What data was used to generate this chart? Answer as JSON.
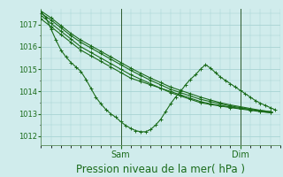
{
  "bg_color": "#d0ecec",
  "grid_color": "#a8d4d4",
  "line_color": "#1a6b1a",
  "marker_color": "#1a6b1a",
  "xlabel": "Pression niveau de la mer( hPa )",
  "xlabel_fontsize": 8.5,
  "tick_label_color": "#1a6b1a",
  "yticks": [
    1012,
    1013,
    1014,
    1015,
    1016,
    1017
  ],
  "ymin": 1011.6,
  "ymax": 1017.7,
  "xmin": 0,
  "xmax": 48,
  "xtick_labels": [
    [
      "Sam",
      16
    ],
    [
      "Dim",
      40
    ]
  ],
  "series": [
    [
      1017.25,
      1016.9,
      1016.55,
      1016.2,
      1015.85,
      1015.6,
      1015.35,
      1015.1,
      1014.85,
      1014.6,
      1014.45,
      1014.3,
      1014.15,
      1014.0,
      1013.85,
      1013.7,
      1013.55,
      1013.45,
      1013.38,
      1013.3,
      1013.25,
      1013.2,
      1013.15,
      1013.1
    ],
    [
      1017.4,
      1017.05,
      1016.7,
      1016.35,
      1016.0,
      1015.75,
      1015.5,
      1015.25,
      1015.0,
      1014.75,
      1014.55,
      1014.35,
      1014.15,
      1013.95,
      1013.8,
      1013.65,
      1013.5,
      1013.42,
      1013.35,
      1013.28,
      1013.22,
      1013.16,
      1013.1,
      1013.05
    ],
    [
      1017.5,
      1017.2,
      1016.85,
      1016.5,
      1016.2,
      1015.95,
      1015.7,
      1015.45,
      1015.2,
      1014.95,
      1014.72,
      1014.5,
      1014.3,
      1014.1,
      1013.95,
      1013.8,
      1013.65,
      1013.55,
      1013.45,
      1013.35,
      1013.28,
      1013.2,
      1013.12,
      1013.05
    ],
    [
      1017.6,
      1017.3,
      1016.95,
      1016.6,
      1016.3,
      1016.05,
      1015.8,
      1015.55,
      1015.3,
      1015.05,
      1014.82,
      1014.6,
      1014.4,
      1014.2,
      1014.05,
      1013.9,
      1013.75,
      1013.62,
      1013.5,
      1013.4,
      1013.32,
      1013.24,
      1013.16,
      1013.1
    ],
    [
      1017.55,
      1017.3,
      1016.8,
      1016.3,
      1015.85,
      1015.55,
      1015.3,
      1015.1,
      1014.9,
      1014.55,
      1014.15,
      1013.75,
      1013.45,
      1013.2,
      1013.0,
      1012.85,
      1012.65,
      1012.48,
      1012.35,
      1012.25,
      1012.2,
      1012.2,
      1012.3,
      1012.5,
      1012.75,
      1013.1,
      1013.45,
      1013.75,
      1014.0,
      1014.3,
      1014.55,
      1014.75,
      1015.0,
      1015.2,
      1015.05,
      1014.85,
      1014.65,
      1014.5,
      1014.35,
      1014.2,
      1014.05,
      1013.9,
      1013.75,
      1013.6,
      1013.48,
      1013.38,
      1013.28,
      1013.18
    ]
  ],
  "series_x": [
    [
      0,
      2,
      4,
      6,
      8,
      10,
      12,
      14,
      16,
      18,
      20,
      22,
      24,
      26,
      28,
      30,
      32,
      34,
      36,
      38,
      40,
      42,
      44,
      46
    ],
    [
      0,
      2,
      4,
      6,
      8,
      10,
      12,
      14,
      16,
      18,
      20,
      22,
      24,
      26,
      28,
      30,
      32,
      34,
      36,
      38,
      40,
      42,
      44,
      46
    ],
    [
      0,
      2,
      4,
      6,
      8,
      10,
      12,
      14,
      16,
      18,
      20,
      22,
      24,
      26,
      28,
      30,
      32,
      34,
      36,
      38,
      40,
      42,
      44,
      46
    ],
    [
      0,
      2,
      4,
      6,
      8,
      10,
      12,
      14,
      16,
      18,
      20,
      22,
      24,
      26,
      28,
      30,
      32,
      34,
      36,
      38,
      40,
      42,
      44,
      46
    ],
    [
      0,
      1,
      2,
      3,
      4,
      5,
      6,
      7,
      8,
      9,
      10,
      11,
      12,
      13,
      14,
      15,
      16,
      17,
      18,
      19,
      20,
      21,
      22,
      23,
      24,
      25,
      26,
      27,
      28,
      29,
      30,
      31,
      32,
      33,
      34,
      35,
      36,
      37,
      38,
      39,
      40,
      41,
      42,
      43,
      44,
      45,
      46,
      47
    ]
  ]
}
